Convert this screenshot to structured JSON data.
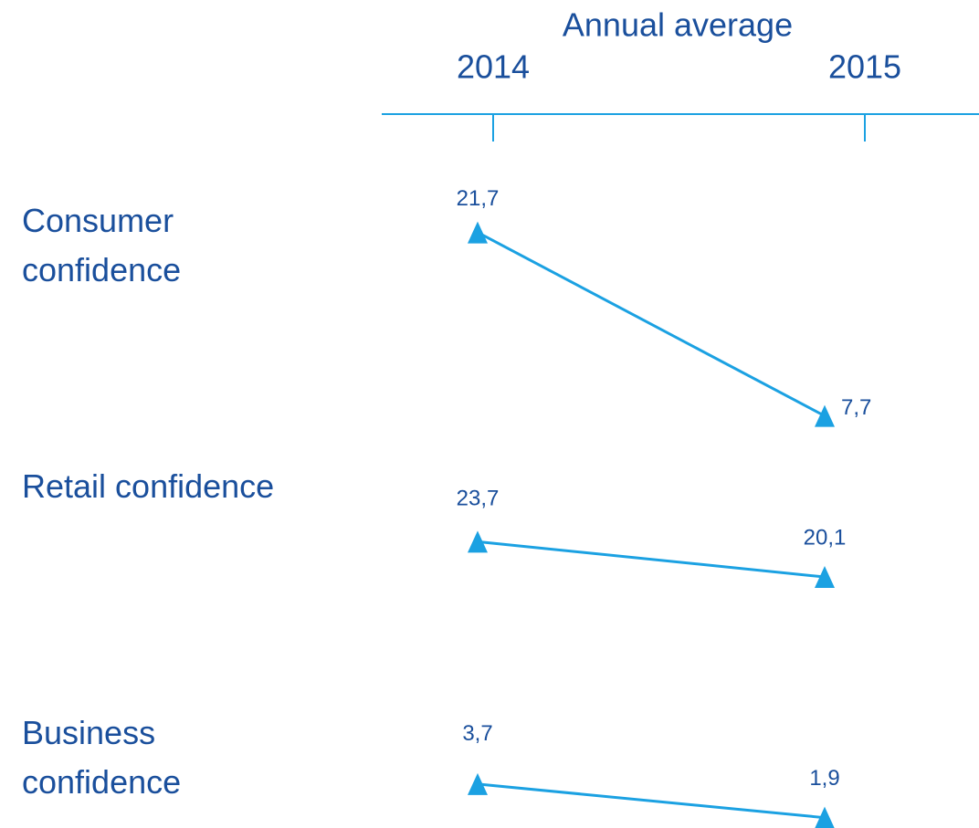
{
  "chart_data": {
    "type": "slope",
    "title": "Annual average",
    "categories": [
      "2014",
      "2015"
    ],
    "color": "#1ba1e2",
    "series": [
      {
        "name": "Consumer confidence",
        "values": [
          21.7,
          7.7
        ],
        "value_labels": [
          "21,7",
          "7,7"
        ],
        "ylim": [
          6,
          25.5
        ]
      },
      {
        "name": "Retail confidence",
        "values": [
          23.7,
          20.1
        ],
        "value_labels": [
          "23,7",
          "20,1"
        ],
        "ylim": [
          17.5,
          26.8
        ]
      },
      {
        "name": "Business confidence",
        "values": [
          3.7,
          1.9
        ],
        "value_labels": [
          "3,7",
          "1,9"
        ],
        "ylim": [
          1.2,
          5.6
        ]
      }
    ]
  }
}
